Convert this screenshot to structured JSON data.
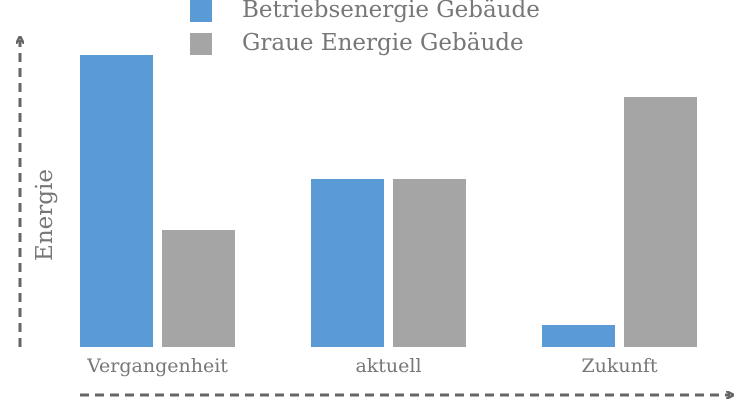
{
  "chart_data": {
    "type": "bar",
    "y_label": "Energie",
    "categories": [
      "Vergangenheit",
      "aktuell",
      "Zukunft"
    ],
    "series": [
      {
        "name": "Betriebsenergie Gebäude",
        "color": "#5b9bd5",
        "values": [
          292,
          168,
          22
        ]
      },
      {
        "name": "Graue Energie Gebäude",
        "color": "#a5a5a5",
        "values": [
          117,
          168,
          250
        ]
      }
    ],
    "ylim": [
      0,
      300
    ]
  }
}
